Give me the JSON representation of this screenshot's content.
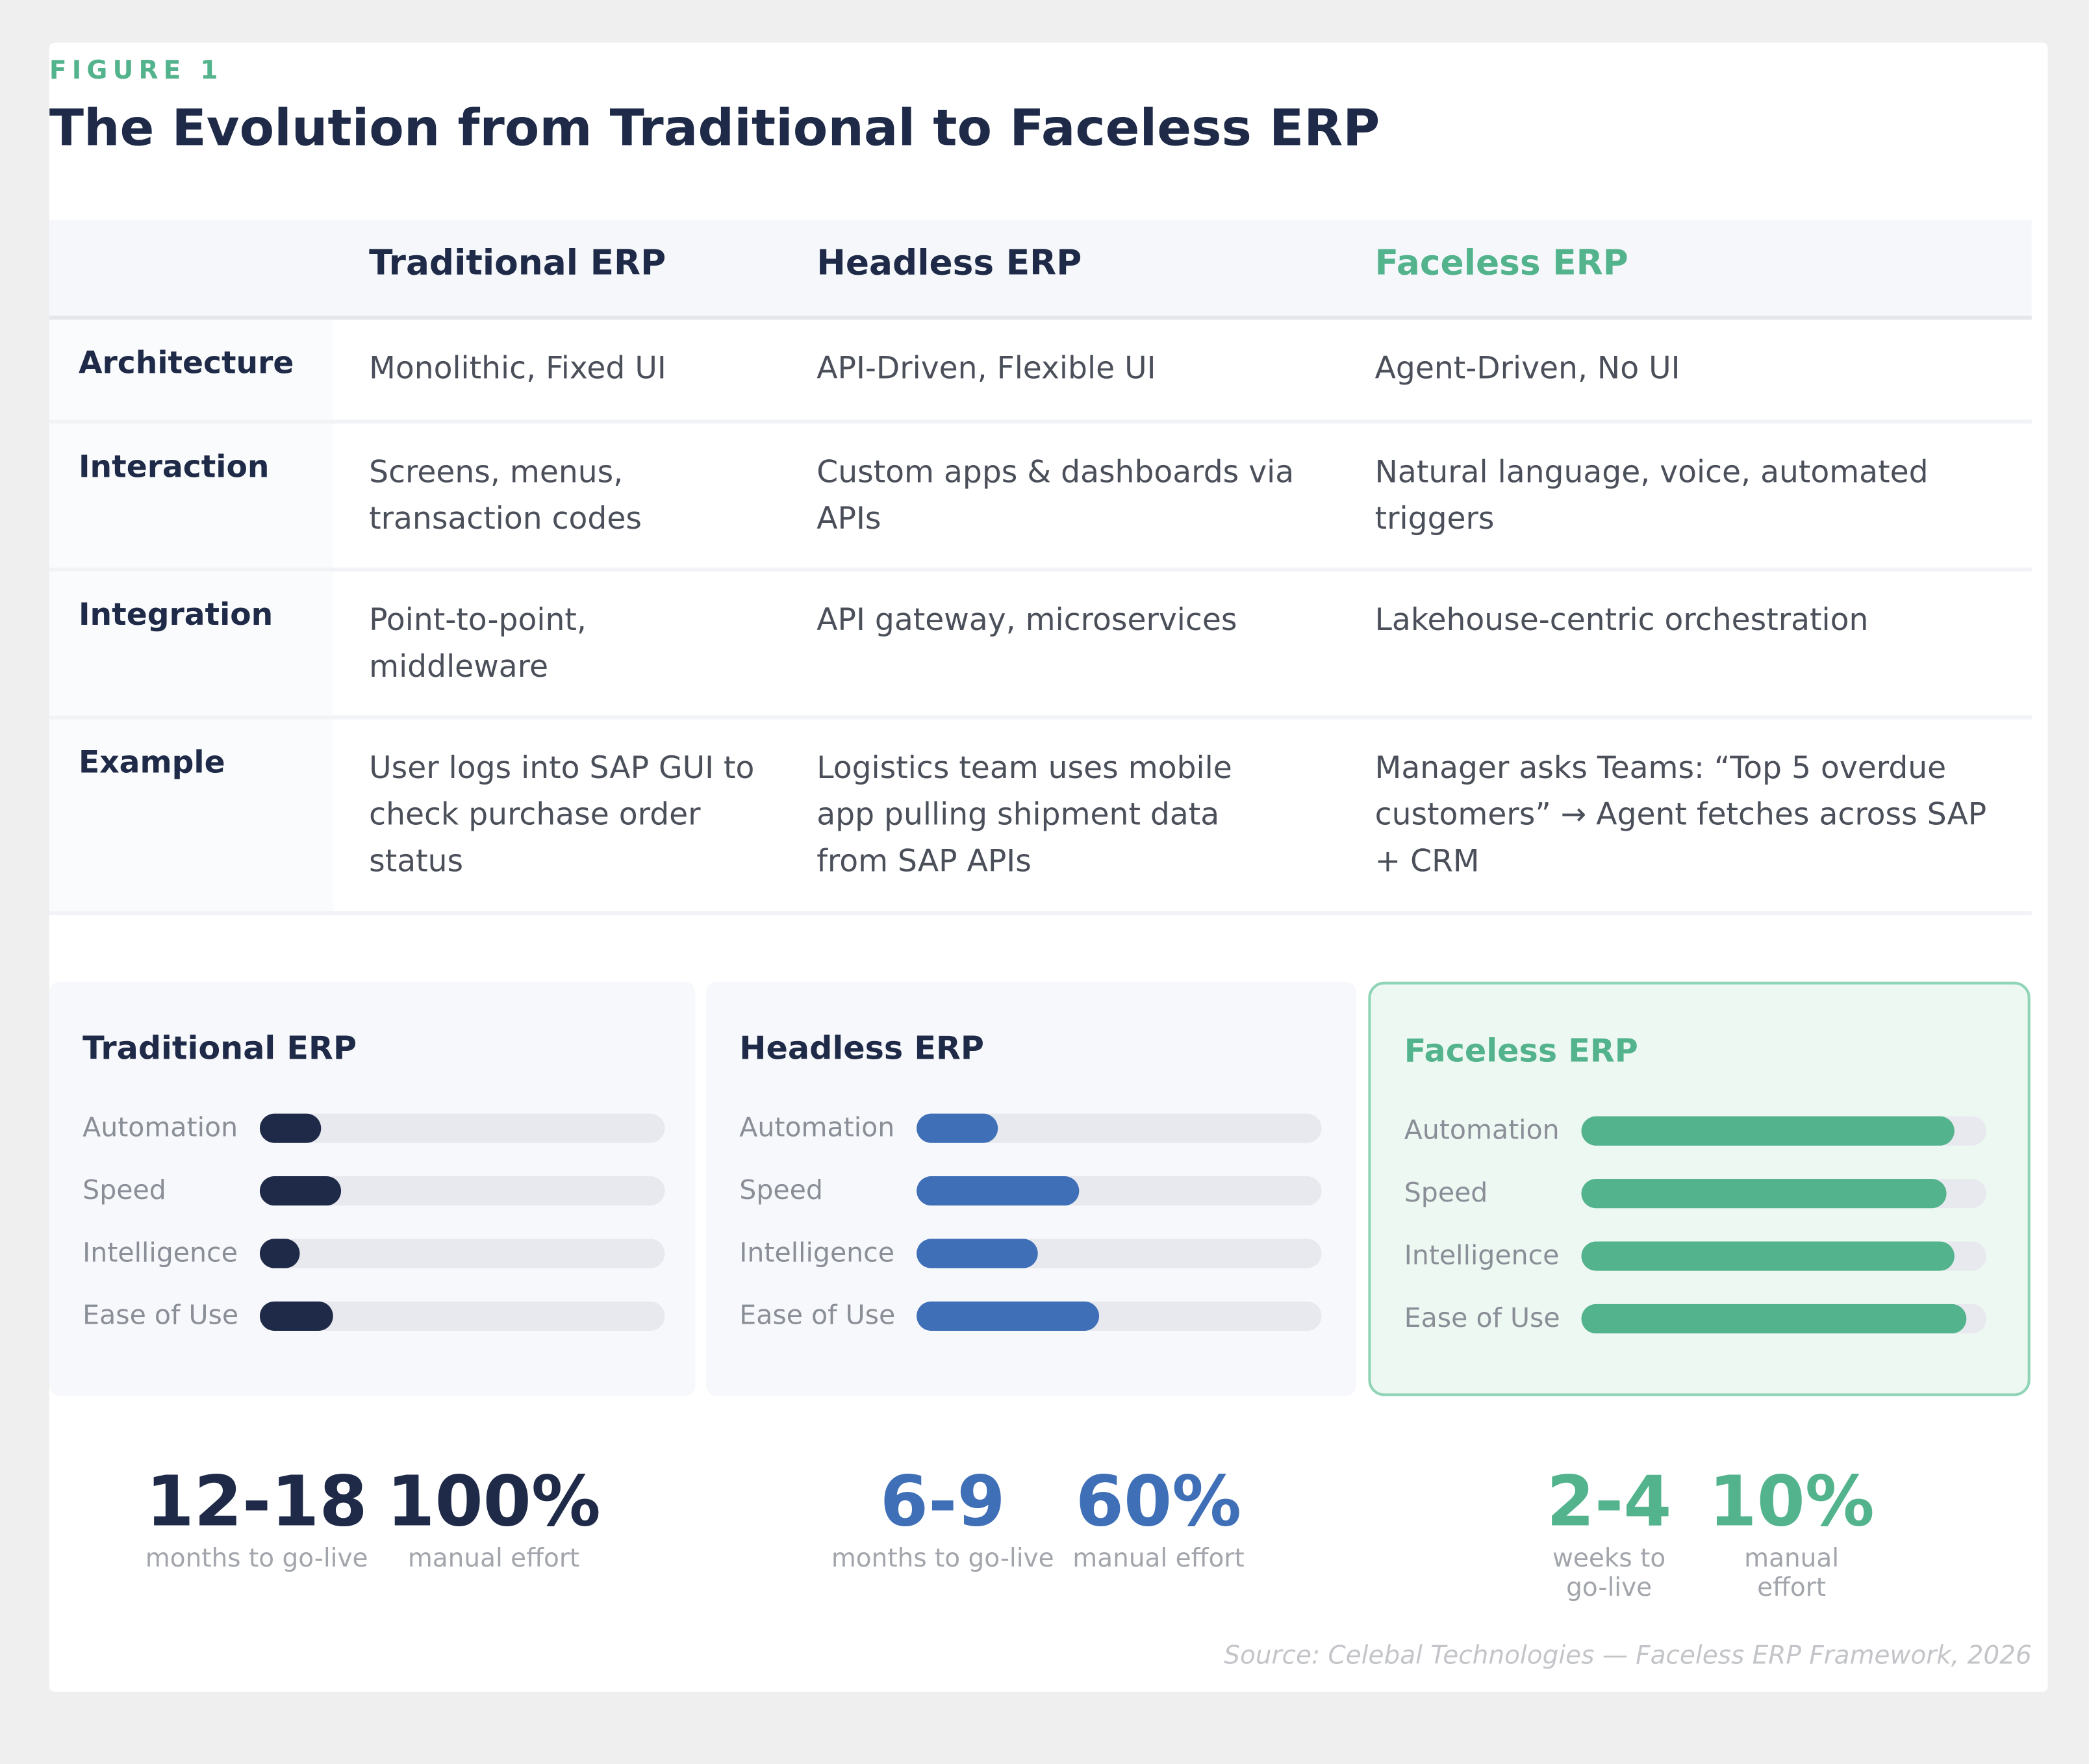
{
  "figure_label": "FIGURE 1",
  "title": "The Evolution from Traditional to Faceless ERP",
  "table": {
    "columns": [
      "Traditional ERP",
      "Headless ERP",
      "Faceless ERP"
    ],
    "rows": [
      {
        "label": "Architecture",
        "cells": [
          "Monolithic, Fixed UI",
          "API-Driven, Flexible UI",
          "Agent-Driven, No UI"
        ]
      },
      {
        "label": "Interaction",
        "cells": [
          "Screens, menus, transaction codes",
          "Custom apps & dashboards via APIs",
          "Natural language, voice, automated triggers"
        ]
      },
      {
        "label": "Integration",
        "cells": [
          "Point-to-point, middleware",
          "API gateway, microservices",
          "Lakehouse-centric orchestration"
        ]
      },
      {
        "label": "Example",
        "cells": [
          "User logs into SAP GUI to check purchase order status",
          "Logistics team uses mobile app pulling shipment data from SAP APIs",
          "Manager asks Teams: “Top 5 overdue customers” → Agent fetches across SAP + CRM"
        ]
      }
    ]
  },
  "chart_data": {
    "type": "bar",
    "xlim": [
      0,
      100
    ],
    "categories": [
      "Automation",
      "Speed",
      "Intelligence",
      "Ease of Use"
    ],
    "series": [
      {
        "name": "Traditional ERP",
        "color": "#1e2a47",
        "values": [
          15,
          20,
          10,
          18
        ]
      },
      {
        "name": "Headless ERP",
        "color": "#3f6fb6",
        "values": [
          20,
          40,
          30,
          45
        ]
      },
      {
        "name": "Faceless ERP",
        "color": "#52b38c",
        "values": [
          92,
          90,
          92,
          95
        ]
      }
    ]
  },
  "stats": [
    {
      "color": "#1e2a47",
      "items": [
        {
          "value": "12-18",
          "label": "months to go-live"
        },
        {
          "value": "100%",
          "label": "manual effort"
        }
      ]
    },
    {
      "color": "#3f6fb6",
      "items": [
        {
          "value": "6-9",
          "label": "months to go-live"
        },
        {
          "value": "60%",
          "label": "manual effort"
        }
      ]
    },
    {
      "color": "#52b38c",
      "items": [
        {
          "value": "2-4",
          "label": "weeks to go-live"
        },
        {
          "value": "10%",
          "label": "manual effort"
        }
      ]
    }
  ],
  "source": "Source: Celebal Technologies — Faceless ERP Framework, 2026"
}
